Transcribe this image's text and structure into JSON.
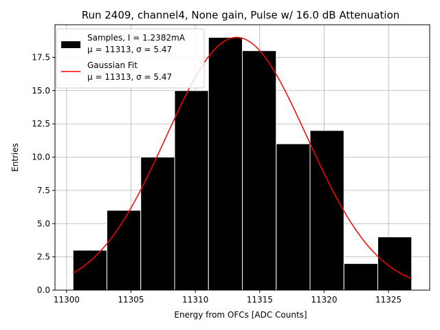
{
  "chart_data": {
    "type": "bar",
    "title": "Run 2409, channel4, None gain, Pulse w/ 16.0 dB Attenuation",
    "xlabel": "Energy from OFCs [ADC Counts]",
    "ylabel": "Entries",
    "xlim": [
      11299.1,
      11328.2
    ],
    "ylim": [
      0,
      19.95
    ],
    "xticks": [
      11300,
      11305,
      11310,
      11315,
      11320,
      11325
    ],
    "yticks": [
      0.0,
      2.5,
      5.0,
      7.5,
      10.0,
      12.5,
      15.0,
      17.5
    ],
    "xtick_labels": [
      "11300",
      "11305",
      "11310",
      "11315",
      "11320",
      "11325"
    ],
    "ytick_labels": [
      "0.0",
      "2.5",
      "5.0",
      "7.5",
      "10.0",
      "12.5",
      "15.0",
      "17.5"
    ],
    "grid": true,
    "legend_position": "top-left",
    "bar_color": "#000000",
    "bar_edge_color": "#ffffff",
    "fit_color": "#ff0000",
    "histogram": {
      "name": "Samples, I = 1.2382mA",
      "stats": "μ = 11313, σ = 5.47",
      "bin_edges": [
        11300.5,
        11303.13,
        11305.76,
        11308.39,
        11311.02,
        11313.65,
        11316.28,
        11318.91,
        11321.54,
        11324.17,
        11326.8
      ],
      "counts": [
        3,
        6,
        10,
        15,
        19,
        18,
        11,
        12,
        2,
        4
      ]
    },
    "fit": {
      "name": "Gaussian Fit",
      "stats": "μ = 11313, σ = 5.47",
      "mu": 11313.2,
      "sigma": 5.47,
      "amplitude": 19.0,
      "x_range": [
        11300.5,
        11326.8
      ]
    }
  }
}
